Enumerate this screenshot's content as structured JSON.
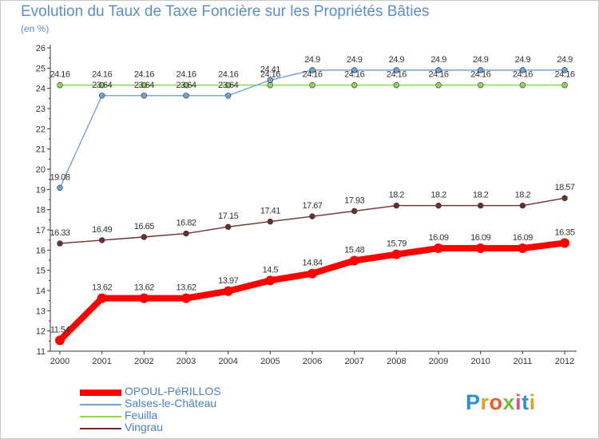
{
  "chart_data": {
    "type": "line",
    "title": "Evolution du Taux de Taxe Foncière sur les Propriétés Bâties",
    "subtitle": "(en %)",
    "xlabel": "",
    "ylabel": "",
    "x": [
      "2000",
      "2001",
      "2002",
      "2003",
      "2004",
      "2005",
      "2006",
      "2007",
      "2008",
      "2009",
      "2010",
      "2011",
      "2012"
    ],
    "ylim": [
      11,
      26
    ],
    "yticks": [
      "11",
      "12",
      "13",
      "14",
      "15",
      "16",
      "17",
      "18",
      "19",
      "20",
      "21",
      "22",
      "23",
      "24",
      "25",
      "26"
    ],
    "grid": false,
    "legend_position": "bottom-left",
    "series": [
      {
        "name": "OPOUL-PéRILLOS",
        "color": "#ff0000",
        "values": [
          11.54,
          13.62,
          13.62,
          13.62,
          13.97,
          14.5,
          14.84,
          15.48,
          15.79,
          16.09,
          16.09,
          16.09,
          16.35
        ],
        "labels": [
          "11.54",
          "13.62",
          "13.62",
          "13.62",
          "13.97",
          "14.5",
          "14.84",
          "15.48",
          "15.79",
          "16.09",
          "16.09",
          "16.09",
          "16.35"
        ]
      },
      {
        "name": "Salses-le-Château",
        "color": "#6fa3d8",
        "values": [
          19.08,
          23.64,
          23.64,
          23.64,
          23.64,
          24.41,
          24.9,
          24.9,
          24.9,
          24.9,
          24.9,
          24.9,
          24.9
        ],
        "labels": [
          "19.08",
          "23.64",
          "23.64",
          "23.64",
          "23.64",
          "24.41",
          "24.9",
          "24.9",
          "24.9",
          "24.9",
          "24.9",
          "24.9",
          "24.9"
        ]
      },
      {
        "name": "Feuilla",
        "color": "#8fd35b",
        "values": [
          24.16,
          24.16,
          24.16,
          24.16,
          24.16,
          24.16,
          24.16,
          24.16,
          24.16,
          24.16,
          24.16,
          24.16,
          24.16
        ],
        "labels": [
          "24.16",
          "24.16",
          "24.16",
          "24.16",
          "24.16",
          "24.16",
          "24.16",
          "24.16",
          "24.16",
          "24.16",
          "24.16",
          "24.16",
          "24.16"
        ]
      },
      {
        "name": "Vingrau",
        "color": "#6b2e2e",
        "values": [
          16.33,
          16.49,
          16.65,
          16.82,
          17.15,
          17.41,
          17.67,
          17.93,
          18.2,
          18.2,
          18.2,
          18.2,
          18.57
        ],
        "labels": [
          "16.33",
          "16.49",
          "16.65",
          "16.82",
          "17.15",
          "17.41",
          "17.67",
          "17.93",
          "18.2",
          "18.2",
          "18.2",
          "18.2",
          "18.57"
        ]
      }
    ]
  },
  "branding": {
    "letters": [
      "P",
      "r",
      "o",
      "x",
      "i",
      "t",
      "i"
    ],
    "colors": [
      "#2d8fd6",
      "#e8a020",
      "#f05a28",
      "#7ab840",
      "#e84a8a",
      "#2d8fd6",
      "#e8a020"
    ]
  }
}
